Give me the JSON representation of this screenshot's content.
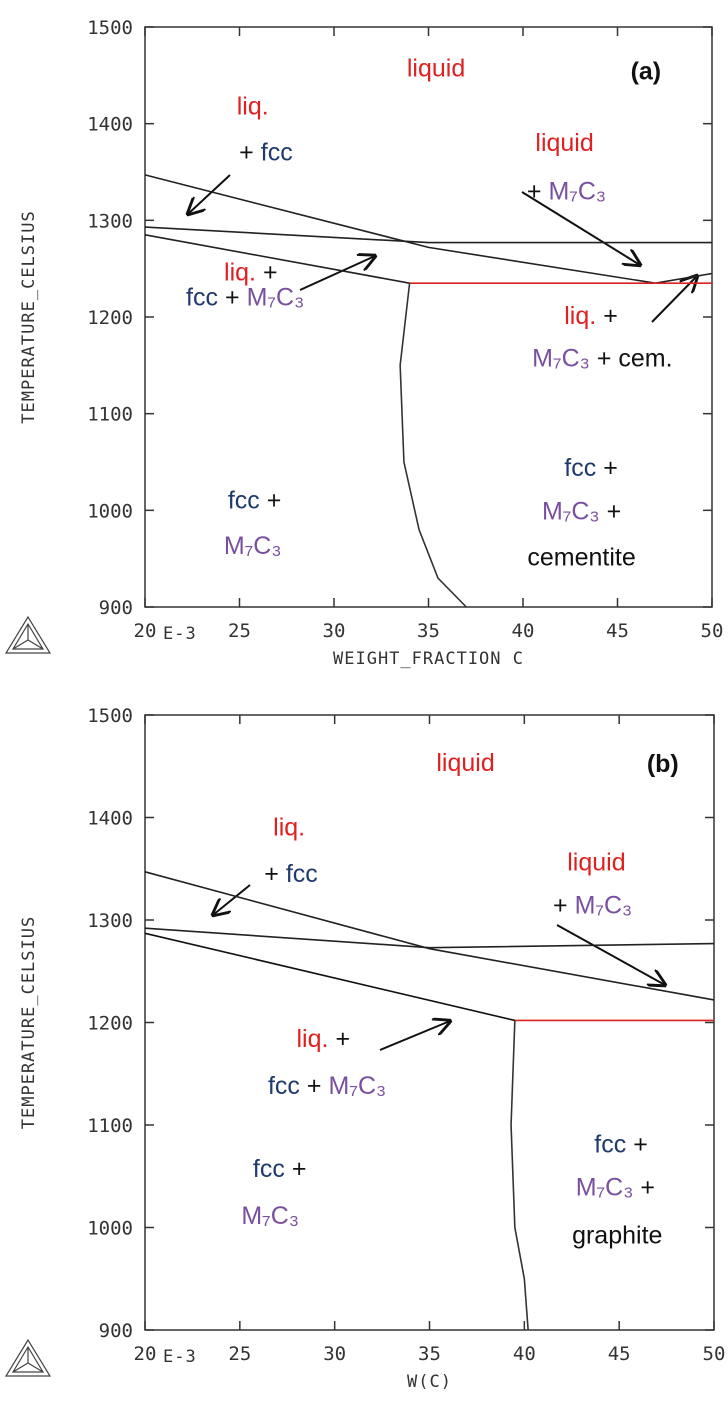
{
  "chart_data": [
    {
      "type": "line",
      "xlim": [
        20,
        50
      ],
      "ylim": [
        900,
        1500
      ],
      "xticks": [
        20,
        25,
        30,
        35,
        40,
        45,
        50
      ],
      "yticks": [
        900,
        1000,
        1100,
        1200,
        1300,
        1400,
        1500
      ],
      "x_label": "WEIGHT_FRACTION C",
      "x_scale_label": "E-3",
      "y_label": "TEMPERATURE_CELSIUS",
      "series": [
        {
          "color": "#222222",
          "x": [
            20,
            35,
            47,
            50
          ],
          "values": [
            1347,
            1272,
            1235,
            1245
          ]
        },
        {
          "color": "#222222",
          "x": [
            20,
            35,
            50
          ],
          "values": [
            1293,
            1277,
            1277
          ]
        },
        {
          "color": "#222222",
          "x": [
            20,
            34
          ],
          "values": [
            1285,
            1235
          ]
        },
        {
          "color": "#e02020",
          "x": [
            34,
            50
          ],
          "values": [
            1235,
            1235
          ]
        },
        {
          "color": "#333333",
          "x": [
            34,
            33.5,
            33.7,
            34.5,
            35.5,
            37
          ],
          "values": [
            1235,
            1150,
            1050,
            980,
            930,
            900
          ]
        }
      ],
      "annotations": [
        {
          "x": 35.4,
          "y": 1458,
          "parts": [
            {
              "text": "liquid",
              "color": "#e02020"
            }
          ]
        },
        {
          "x": 46.5,
          "y": 1455,
          "bold": true,
          "parts": [
            {
              "text": "(a)",
              "color": "#111111"
            }
          ]
        },
        {
          "x": 25.7,
          "y": 1419,
          "parts": [
            {
              "text": "liq.",
              "color": "#e02020"
            }
          ]
        },
        {
          "x": 26.4,
          "y": 1371,
          "parts": [
            {
              "text": "+",
              "color": "#111111"
            },
            {
              "text": "fcc",
              "color": "#1f3a6e"
            }
          ]
        },
        {
          "x": 42.2,
          "y": 1381,
          "parts": [
            {
              "text": "liquid",
              "color": "#e02020"
            }
          ]
        },
        {
          "x": 42.3,
          "y": 1331,
          "parts": [
            {
              "text": "+",
              "color": "#111111"
            },
            {
              "text": "M₇C₃",
              "color": "#7a4fa0"
            }
          ]
        },
        {
          "x": 25.6,
          "y": 1247,
          "parts": [
            {
              "text": "liq.",
              "color": "#e02020"
            },
            {
              "text": "+",
              "color": "#111111"
            }
          ]
        },
        {
          "x": 25.3,
          "y": 1221,
          "parts": [
            {
              "text": "fcc",
              "color": "#1f3a6e"
            },
            {
              "text": "+",
              "color": "#111111"
            },
            {
              "text": "M₇C₃",
              "color": "#7a4fa0"
            }
          ]
        },
        {
          "x": 43.6,
          "y": 1202,
          "parts": [
            {
              "text": "liq.",
              "color": "#e02020"
            },
            {
              "text": "+",
              "color": "#111111"
            }
          ]
        },
        {
          "x": 44.2,
          "y": 1158,
          "parts": [
            {
              "text": "M₇C₃",
              "color": "#7a4fa0"
            },
            {
              "text": "+ cem.",
              "color": "#111111"
            }
          ]
        },
        {
          "x": 43.6,
          "y": 1045,
          "parts": [
            {
              "text": "fcc",
              "color": "#1f3a6e"
            },
            {
              "text": "+",
              "color": "#111111"
            }
          ]
        },
        {
          "x": 43.1,
          "y": 1000,
          "parts": [
            {
              "text": "M₇C₃",
              "color": "#7a4fa0"
            },
            {
              "text": "+",
              "color": "#111111"
            }
          ]
        },
        {
          "x": 43.1,
          "y": 952,
          "parts": [
            {
              "text": "cementite",
              "color": "#111111"
            }
          ]
        },
        {
          "x": 25.8,
          "y": 1011,
          "parts": [
            {
              "text": "fcc",
              "color": "#1f3a6e"
            },
            {
              "text": "+",
              "color": "#111111"
            }
          ]
        },
        {
          "x": 25.7,
          "y": 964,
          "parts": [
            {
              "text": "M₇C₃",
              "color": "#7a4fa0"
            }
          ]
        }
      ]
    },
    {
      "type": "line",
      "xlim": [
        20,
        50
      ],
      "ylim": [
        900,
        1500
      ],
      "xticks": [
        20,
        25,
        30,
        35,
        40,
        45,
        50
      ],
      "yticks": [
        900,
        1000,
        1100,
        1200,
        1300,
        1400,
        1500
      ],
      "x_label": "W(C)",
      "x_scale_label": "E-3",
      "y_label": "TEMPERATURE_CELSIUS",
      "series": [
        {
          "color": "#222222",
          "x": [
            20,
            35,
            50
          ],
          "values": [
            1347,
            1272,
            1222
          ]
        },
        {
          "color": "#222222",
          "x": [
            20,
            35,
            50
          ],
          "values": [
            1292,
            1273,
            1277
          ]
        },
        {
          "color": "#111111",
          "x": [
            20,
            39.5
          ],
          "values": [
            1287,
            1202
          ]
        },
        {
          "color": "#e02020",
          "x": [
            39.5,
            50
          ],
          "values": [
            1202,
            1202
          ]
        },
        {
          "color": "#333333",
          "x": [
            39.5,
            39.3,
            39.5,
            40,
            40.2
          ],
          "values": [
            1202,
            1100,
            1000,
            950,
            900
          ]
        }
      ],
      "annotations": [
        {
          "x": 36.9,
          "y": 1454,
          "parts": [
            {
              "text": "liquid",
              "color": "#e02020"
            }
          ]
        },
        {
          "x": 47.3,
          "y": 1453,
          "bold": true,
          "parts": [
            {
              "text": "(b)",
              "color": "#111111"
            }
          ]
        },
        {
          "x": 27.6,
          "y": 1391,
          "parts": [
            {
              "text": "liq.",
              "color": "#e02020"
            }
          ]
        },
        {
          "x": 27.7,
          "y": 1346,
          "parts": [
            {
              "text": "+",
              "color": "#111111"
            },
            {
              "text": "fcc",
              "color": "#1f3a6e"
            }
          ]
        },
        {
          "x": 43.8,
          "y": 1357,
          "parts": [
            {
              "text": "liquid",
              "color": "#e02020"
            }
          ]
        },
        {
          "x": 43.6,
          "y": 1315,
          "parts": [
            {
              "text": "+",
              "color": "#111111"
            },
            {
              "text": "M₇C₃",
              "color": "#7a4fa0"
            }
          ]
        },
        {
          "x": 29.4,
          "y": 1185,
          "parts": [
            {
              "text": "liq.",
              "color": "#e02020"
            },
            {
              "text": "+",
              "color": "#111111"
            }
          ]
        },
        {
          "x": 29.6,
          "y": 1139,
          "parts": [
            {
              "text": "fcc",
              "color": "#1f3a6e"
            },
            {
              "text": "+",
              "color": "#111111"
            },
            {
              "text": "M₇C₃",
              "color": "#7a4fa0"
            }
          ]
        },
        {
          "x": 45.1,
          "y": 1082,
          "parts": [
            {
              "text": "fcc",
              "color": "#1f3a6e"
            },
            {
              "text": "+",
              "color": "#111111"
            }
          ]
        },
        {
          "x": 44.8,
          "y": 1040,
          "parts": [
            {
              "text": "M₇C₃",
              "color": "#7a4fa0"
            },
            {
              "text": "+",
              "color": "#111111"
            }
          ]
        },
        {
          "x": 44.9,
          "y": 993,
          "parts": [
            {
              "text": "graphite",
              "color": "#111111"
            }
          ]
        },
        {
          "x": 27.1,
          "y": 1058,
          "parts": [
            {
              "text": "fcc",
              "color": "#1f3a6e"
            },
            {
              "text": "+",
              "color": "#111111"
            }
          ]
        },
        {
          "x": 26.6,
          "y": 1012,
          "parts": [
            {
              "text": "M₇C₃",
              "color": "#7a4fa0"
            }
          ]
        }
      ]
    }
  ]
}
